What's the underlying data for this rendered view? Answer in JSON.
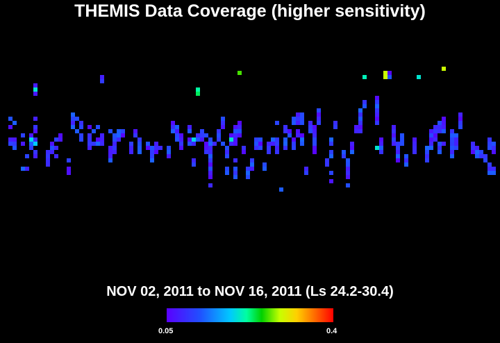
{
  "title": "THEMIS Data Coverage (higher sensitivity)",
  "subtitle": "NOV 02, 2011 to NOV 16, 2011 (Ls 24.2-30.4)",
  "colorbar": {
    "min_label": "0.05",
    "max_label": "0.4",
    "min": 0.05,
    "max": 0.4,
    "stops": [
      "#5a00ff",
      "#2050ff",
      "#00c8ff",
      "#00ffa0",
      "#00d000",
      "#c8ff00",
      "#ffd000",
      "#ff6000",
      "#ff0000"
    ]
  },
  "chart_data": {
    "type": "heatmap",
    "title": "THEMIS Data Coverage (higher sensitivity)",
    "subtitle": "NOV 02, 2011 to NOV 16, 2011 (Ls 24.2-30.4)",
    "value_range": [
      0.05,
      0.4
    ],
    "grid_cols": 120,
    "grid_rows": 82,
    "cell_columns": [
      {
        "col": 2,
        "rows": [
          28,
          30,
          33,
          34
        ]
      },
      {
        "col": 3,
        "rows": [
          29,
          33,
          34,
          35
        ]
      },
      {
        "col": 5,
        "rows": [
          32,
          34,
          40
        ]
      },
      {
        "col": 6,
        "rows": [
          37,
          40
        ]
      },
      {
        "col": 7,
        "rows": [
          32,
          33,
          34,
          35
        ]
      },
      {
        "col": 8,
        "rows": [
          20,
          22,
          28,
          30,
          31,
          33,
          34,
          36,
          37
        ]
      },
      {
        "col": 11,
        "rows": [
          36,
          37,
          38,
          39
        ]
      },
      {
        "col": 12,
        "rows": [
          34,
          35,
          36
        ]
      },
      {
        "col": 13,
        "rows": [
          33,
          35,
          37
        ]
      },
      {
        "col": 14,
        "rows": [
          32,
          33
        ]
      },
      {
        "col": 16,
        "rows": [
          38,
          40,
          41
        ]
      },
      {
        "col": 17,
        "rows": [
          27,
          28,
          29,
          30
        ]
      },
      {
        "col": 18,
        "rows": [
          28,
          31
        ]
      },
      {
        "col": 19,
        "rows": [
          29,
          30,
          32,
          33
        ]
      },
      {
        "col": 21,
        "rows": [
          30,
          32,
          33,
          34,
          35
        ]
      },
      {
        "col": 22,
        "rows": [
          31,
          34
        ]
      },
      {
        "col": 23,
        "rows": [
          30,
          33,
          34
        ]
      },
      {
        "col": 24,
        "rows": [
          18,
          19,
          32,
          33,
          34
        ]
      },
      {
        "col": 26,
        "rows": [
          31,
          35,
          36,
          37,
          38
        ]
      },
      {
        "col": 27,
        "rows": [
          32,
          33,
          34,
          35,
          36
        ]
      },
      {
        "col": 28,
        "rows": [
          31,
          32,
          33
        ]
      },
      {
        "col": 29,
        "rows": [
          31,
          32
        ]
      },
      {
        "col": 31,
        "rows": [
          34,
          35,
          36
        ]
      },
      {
        "col": 32,
        "rows": [
          31,
          32
        ]
      },
      {
        "col": 33,
        "rows": [
          33,
          34,
          35,
          36
        ]
      },
      {
        "col": 35,
        "rows": [
          34,
          35
        ]
      },
      {
        "col": 36,
        "rows": [
          35,
          36,
          37,
          38
        ]
      },
      {
        "col": 37,
        "rows": [
          34,
          35,
          36
        ]
      },
      {
        "col": 38,
        "rows": [
          35
        ]
      },
      {
        "col": 40,
        "rows": [
          35,
          36,
          37
        ]
      },
      {
        "col": 41,
        "rows": [
          29,
          30,
          31
        ]
      },
      {
        "col": 42,
        "rows": [
          30,
          31,
          32,
          33
        ]
      },
      {
        "col": 43,
        "rows": [
          32,
          33,
          34,
          35
        ]
      },
      {
        "col": 45,
        "rows": [
          30,
          31,
          33,
          34
        ]
      },
      {
        "col": 46,
        "rows": [
          33,
          34,
          38,
          39
        ]
      },
      {
        "col": 47,
        "rows": [
          21,
          22,
          32,
          33
        ]
      },
      {
        "col": 48,
        "rows": [
          31,
          32,
          33
        ]
      },
      {
        "col": 49,
        "rows": [
          32,
          34,
          35,
          36
        ]
      },
      {
        "col": 50,
        "rows": [
          33,
          34,
          35,
          36,
          37,
          38,
          39,
          40,
          41,
          42,
          44
        ]
      },
      {
        "col": 51,
        "rows": [
          34
        ]
      },
      {
        "col": 52,
        "rows": [
          31,
          32,
          33
        ]
      },
      {
        "col": 53,
        "rows": [
          28,
          29,
          30,
          34
        ]
      },
      {
        "col": 54,
        "rows": [
          35,
          36,
          37,
          40,
          41
        ]
      },
      {
        "col": 55,
        "rows": [
          32,
          33,
          34
        ]
      },
      {
        "col": 56,
        "rows": [
          30,
          31,
          32,
          33,
          34,
          38,
          40,
          41,
          42
        ]
      },
      {
        "col": 57,
        "rows": [
          17,
          29,
          30,
          31,
          32
        ]
      },
      {
        "col": 58,
        "rows": [
          35,
          36
        ]
      },
      {
        "col": 59,
        "rows": [
          40,
          41,
          42
        ]
      },
      {
        "col": 60,
        "rows": [
          38,
          39,
          40
        ]
      },
      {
        "col": 61,
        "rows": [
          33,
          34,
          35
        ]
      },
      {
        "col": 62,
        "rows": [
          33,
          34,
          35
        ]
      },
      {
        "col": 63,
        "rows": [
          39,
          40
        ]
      },
      {
        "col": 64,
        "rows": [
          34,
          35,
          36
        ]
      },
      {
        "col": 65,
        "rows": [
          33,
          34
        ]
      },
      {
        "col": 66,
        "rows": [
          29,
          33,
          34,
          35,
          36
        ]
      },
      {
        "col": 67,
        "rows": [
          45
        ]
      },
      {
        "col": 68,
        "rows": [
          30,
          31,
          33,
          34,
          35
        ]
      },
      {
        "col": 69,
        "rows": [
          31,
          32
        ]
      },
      {
        "col": 70,
        "rows": [
          28,
          29,
          33,
          34,
          35
        ]
      },
      {
        "col": 71,
        "rows": [
          27,
          28,
          29,
          31,
          32
        ]
      },
      {
        "col": 72,
        "rows": [
          27,
          28,
          29,
          32,
          33,
          34
        ]
      },
      {
        "col": 73,
        "rows": [
          40,
          41
        ]
      },
      {
        "col": 74,
        "rows": [
          29,
          30,
          31
        ]
      },
      {
        "col": 75,
        "rows": [
          30,
          31,
          32,
          33,
          34,
          35,
          36
        ]
      },
      {
        "col": 76,
        "rows": [
          26,
          27,
          28,
          29
        ]
      },
      {
        "col": 78,
        "rows": [
          38,
          39
        ]
      },
      {
        "col": 79,
        "rows": [
          33,
          34,
          36,
          37,
          41,
          43
        ]
      },
      {
        "col": 80,
        "rows": [
          29,
          30
        ]
      },
      {
        "col": 82,
        "rows": [
          36,
          37
        ]
      },
      {
        "col": 83,
        "rows": [
          38,
          39,
          40,
          41,
          42,
          44
        ]
      },
      {
        "col": 84,
        "rows": [
          34,
          35,
          36
        ]
      },
      {
        "col": 85,
        "rows": [
          30,
          31
        ]
      },
      {
        "col": 86,
        "rows": [
          26,
          27,
          28,
          29,
          30,
          31
        ]
      },
      {
        "col": 87,
        "rows": [
          18,
          24,
          25
        ]
      },
      {
        "col": 90,
        "rows": [
          23,
          24,
          25,
          26,
          27,
          28,
          29
        ]
      },
      {
        "col": 91,
        "rows": [
          33,
          34,
          35,
          36
        ]
      },
      {
        "col": 93,
        "rows": [
          17,
          18
        ]
      },
      {
        "col": 94,
        "rows": [
          30,
          31,
          32,
          33,
          34
        ]
      },
      {
        "col": 95,
        "rows": [
          34,
          35,
          36,
          37,
          38
        ]
      },
      {
        "col": 96,
        "rows": [
          32,
          33,
          34
        ]
      },
      {
        "col": 97,
        "rows": [
          37,
          38,
          39
        ]
      },
      {
        "col": 99,
        "rows": [
          33,
          34,
          35,
          36
        ]
      },
      {
        "col": 100,
        "rows": [
          18
        ]
      },
      {
        "col": 102,
        "rows": [
          35,
          36,
          37,
          38
        ]
      },
      {
        "col": 103,
        "rows": [
          31,
          32,
          33,
          34,
          35
        ]
      },
      {
        "col": 104,
        "rows": [
          30,
          31,
          32,
          33
        ]
      },
      {
        "col": 105,
        "rows": [
          29,
          30,
          31,
          34,
          35,
          36
        ]
      },
      {
        "col": 106,
        "rows": [
          16,
          28,
          29,
          30,
          31,
          34
        ]
      },
      {
        "col": 108,
        "rows": [
          31,
          32,
          33,
          34,
          35,
          36,
          37
        ]
      },
      {
        "col": 109,
        "rows": [
          32,
          33,
          34,
          35
        ]
      },
      {
        "col": 110,
        "rows": [
          27,
          28,
          29,
          30
        ]
      },
      {
        "col": 113,
        "rows": [
          34,
          35,
          36
        ]
      },
      {
        "col": 114,
        "rows": [
          35,
          36,
          37
        ]
      },
      {
        "col": 115,
        "rows": [
          36,
          37
        ]
      },
      {
        "col": 116,
        "rows": [
          37,
          38
        ]
      },
      {
        "col": 117,
        "rows": [
          33,
          34,
          35,
          39,
          40,
          41
        ]
      },
      {
        "col": 118,
        "rows": [
          34,
          35,
          36,
          40,
          41
        ]
      }
    ],
    "highlight_cells": [
      {
        "col": 8,
        "row": 21,
        "value": 0.16
      },
      {
        "col": 8,
        "row": 34,
        "value": 0.14
      },
      {
        "col": 7,
        "row": 33,
        "value": 0.15
      },
      {
        "col": 47,
        "row": 21,
        "value": 0.18
      },
      {
        "col": 47,
        "row": 22,
        "value": 0.2
      },
      {
        "col": 46,
        "row": 33,
        "value": 0.15
      },
      {
        "col": 57,
        "row": 17,
        "value": 0.24
      },
      {
        "col": 55,
        "row": 33,
        "value": 0.16
      },
      {
        "col": 87,
        "row": 18,
        "value": 0.17
      },
      {
        "col": 90,
        "row": 35,
        "value": 0.16
      },
      {
        "col": 92,
        "row": 17,
        "value": 0.27
      },
      {
        "col": 92,
        "row": 18,
        "value": 0.27
      },
      {
        "col": 100,
        "row": 18,
        "value": 0.16
      },
      {
        "col": 106,
        "row": 16,
        "value": 0.27
      }
    ]
  }
}
